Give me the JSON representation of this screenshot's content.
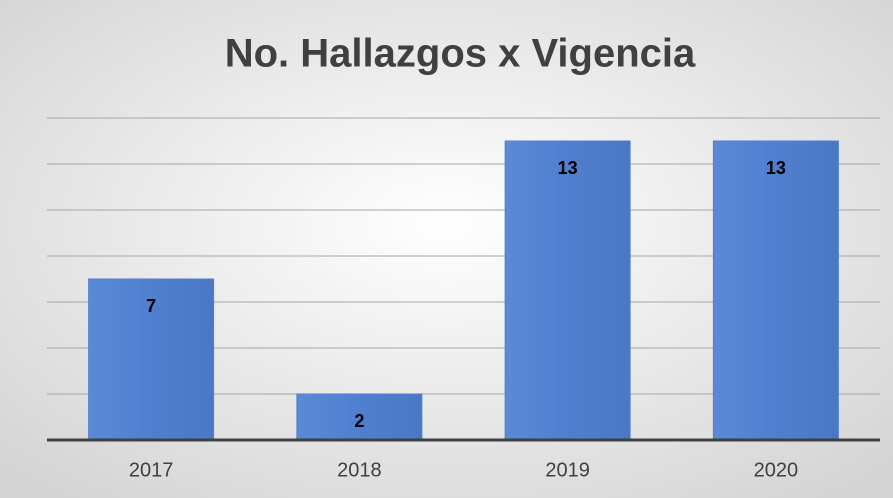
{
  "chart_data": {
    "type": "bar",
    "title": "No. Hallazgos x Vigencia",
    "categories": [
      "2017",
      "2018",
      "2019",
      "2020"
    ],
    "values": [
      7,
      2,
      13,
      13
    ],
    "color": "#4f7fcf",
    "ylim": [
      0,
      14
    ],
    "yticks": [
      0,
      2,
      4,
      6,
      8,
      10,
      12,
      14
    ],
    "grid": true
  }
}
